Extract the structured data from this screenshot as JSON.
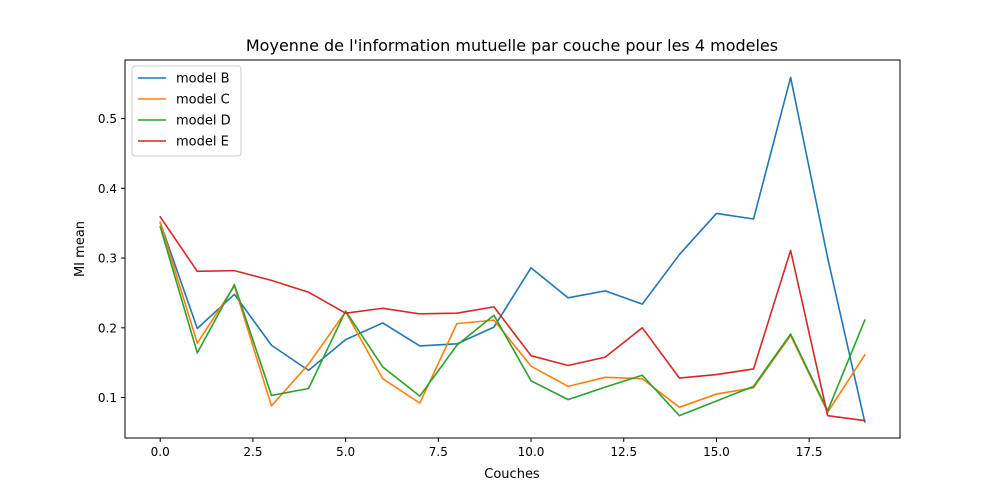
{
  "chart_data": {
    "type": "line",
    "title": "Moyenne de l'information mutuelle par couche pour les 4 modeles",
    "xlabel": "Couches",
    "ylabel": "MI mean",
    "xlim": [
      -0.95,
      19.95
    ],
    "ylim": [
      0.042,
      0.584
    ],
    "xticks": [
      0.0,
      2.5,
      5.0,
      7.5,
      10.0,
      12.5,
      15.0,
      17.5
    ],
    "xtick_labels": [
      "0.0",
      "2.5",
      "5.0",
      "7.5",
      "10.0",
      "12.5",
      "15.0",
      "17.5"
    ],
    "yticks": [
      0.1,
      0.2,
      0.3,
      0.4,
      0.5
    ],
    "ytick_labels": [
      "0.1",
      "0.2",
      "0.3",
      "0.4",
      "0.5"
    ],
    "grid": false,
    "legend_position": "top-left",
    "x": [
      0,
      1,
      2,
      3,
      4,
      5,
      6,
      7,
      8,
      9,
      10,
      11,
      12,
      13,
      14,
      15,
      16,
      17,
      18,
      19
    ],
    "series": [
      {
        "name": "model B",
        "color": "#1f77b4",
        "values": [
          0.351,
          0.199,
          0.248,
          0.175,
          0.139,
          0.183,
          0.207,
          0.174,
          0.177,
          0.201,
          0.286,
          0.243,
          0.253,
          0.234,
          0.305,
          0.364,
          0.356,
          0.559,
          0.3,
          0.065
        ]
      },
      {
        "name": "model C",
        "color": "#ff7f0e",
        "values": [
          0.351,
          0.178,
          0.26,
          0.088,
          0.148,
          0.223,
          0.127,
          0.092,
          0.206,
          0.211,
          0.145,
          0.116,
          0.129,
          0.127,
          0.086,
          0.105,
          0.114,
          0.189,
          0.079,
          0.161
        ]
      },
      {
        "name": "model D",
        "color": "#2ca02c",
        "values": [
          0.345,
          0.164,
          0.262,
          0.103,
          0.113,
          0.224,
          0.144,
          0.102,
          0.175,
          0.218,
          0.124,
          0.097,
          0.115,
          0.132,
          0.074,
          0.095,
          0.116,
          0.191,
          0.081,
          0.211
        ]
      },
      {
        "name": "model E",
        "color": "#d62728",
        "values": [
          0.359,
          0.281,
          0.282,
          0.268,
          0.251,
          0.221,
          0.228,
          0.22,
          0.221,
          0.23,
          0.16,
          0.146,
          0.158,
          0.2,
          0.128,
          0.133,
          0.141,
          0.311,
          0.074,
          0.067
        ]
      }
    ]
  }
}
